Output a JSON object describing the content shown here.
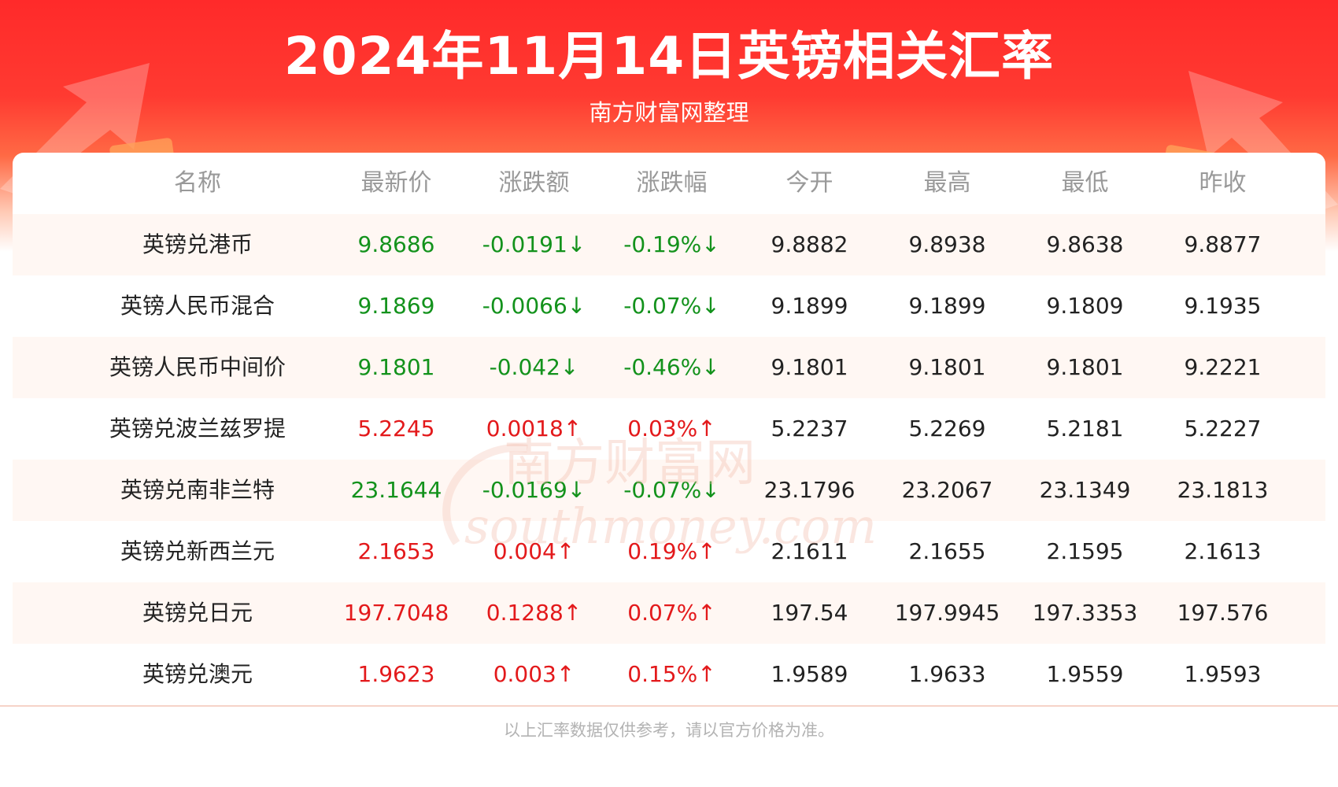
{
  "header": {
    "title": "2024年11月14日英镑相关汇率",
    "subtitle": "南方财富网整理"
  },
  "colors": {
    "banner_red": "#ff2a2a",
    "up": "#e3191b",
    "down": "#13921c",
    "row_alt": "#fff7f3"
  },
  "table": {
    "columns": [
      "名称",
      "最新价",
      "涨跌额",
      "涨跌幅",
      "今开",
      "最高",
      "最低",
      "昨收"
    ],
    "rows": [
      {
        "name": "英镑兑港币",
        "latest": "9.8686",
        "change": "-0.0191↓",
        "pct": "-0.19%↓",
        "open": "9.8882",
        "high": "9.8938",
        "low": "9.8638",
        "prev": "9.8877",
        "trend": "down"
      },
      {
        "name": "英镑人民币混合",
        "latest": "9.1869",
        "change": "-0.0066↓",
        "pct": "-0.07%↓",
        "open": "9.1899",
        "high": "9.1899",
        "low": "9.1809",
        "prev": "9.1935",
        "trend": "down"
      },
      {
        "name": "英镑人民币中间价",
        "latest": "9.1801",
        "change": "-0.042↓",
        "pct": "-0.46%↓",
        "open": "9.1801",
        "high": "9.1801",
        "low": "9.1801",
        "prev": "9.2221",
        "trend": "down"
      },
      {
        "name": "英镑兑波兰兹罗提",
        "latest": "5.2245",
        "change": "0.0018↑",
        "pct": "0.03%↑",
        "open": "5.2237",
        "high": "5.2269",
        "low": "5.2181",
        "prev": "5.2227",
        "trend": "up"
      },
      {
        "name": "英镑兑南非兰特",
        "latest": "23.1644",
        "change": "-0.0169↓",
        "pct": "-0.07%↓",
        "open": "23.1796",
        "high": "23.2067",
        "low": "23.1349",
        "prev": "23.1813",
        "trend": "down"
      },
      {
        "name": "英镑兑新西兰元",
        "latest": "2.1653",
        "change": "0.004↑",
        "pct": "0.19%↑",
        "open": "2.1611",
        "high": "2.1655",
        "low": "2.1595",
        "prev": "2.1613",
        "trend": "up"
      },
      {
        "name": "英镑兑日元",
        "latest": "197.7048",
        "change": "0.1288↑",
        "pct": "0.07%↑",
        "open": "197.54",
        "high": "197.9945",
        "low": "197.3353",
        "prev": "197.576",
        "trend": "up"
      },
      {
        "name": "英镑兑澳元",
        "latest": "1.9623",
        "change": "0.003↑",
        "pct": "0.15%↑",
        "open": "1.9589",
        "high": "1.9633",
        "low": "1.9559",
        "prev": "1.9593",
        "trend": "up"
      }
    ]
  },
  "watermark": {
    "line1": "南方财富网",
    "line2": "southmoney.com"
  },
  "footer": {
    "note": "以上汇率数据仅供参考，请以官方价格为准。"
  }
}
